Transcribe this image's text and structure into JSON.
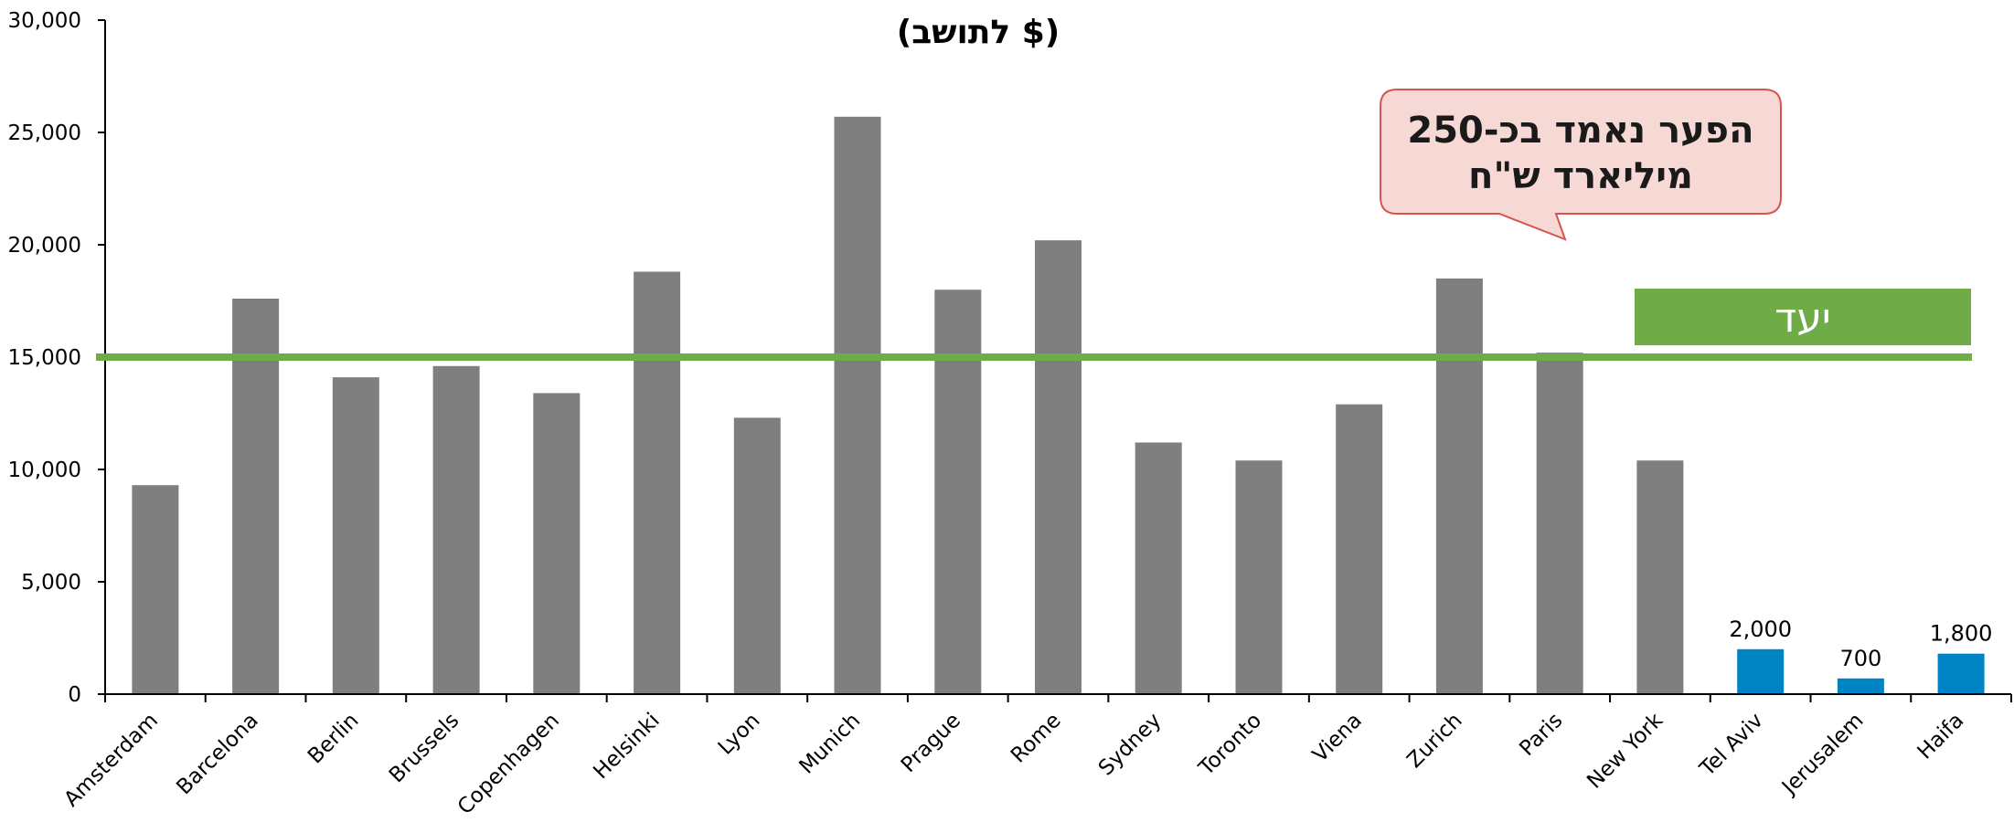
{
  "chart_data": {
    "type": "bar",
    "title": "($ לתושב)",
    "categories": [
      "Amsterdam",
      "Barcelona",
      "Berlin",
      "Brussels",
      "Copenhagen",
      "Helsinki",
      "Lyon",
      "Munich",
      "Prague",
      "Rome",
      "Sydney",
      "Toronto",
      "Viena",
      "Zurich",
      "Paris",
      "New York",
      "Tel Aviv",
      "Jerusalem",
      "Haifa"
    ],
    "values": [
      9300,
      17600,
      14100,
      14600,
      13400,
      18800,
      12300,
      25700,
      18000,
      20200,
      11200,
      10400,
      12900,
      18500,
      15200,
      10400,
      2000,
      700,
      1800
    ],
    "data_labels": [
      "",
      "",
      "",
      "",
      "",
      "",
      "",
      "",
      "",
      "",
      "",
      "",
      "",
      "",
      "",
      "",
      "2,000",
      "700",
      "1,800"
    ],
    "ylim": [
      0,
      30000
    ],
    "yticks": [
      0,
      5000,
      10000,
      15000,
      20000,
      25000,
      30000
    ],
    "ytick_labels": [
      "0",
      "5,000",
      "10,000",
      "15,000",
      "20,000",
      "25,000",
      "30,000"
    ],
    "grid": false,
    "legend": "none",
    "colors": {
      "bar_default": "#7f7f7f",
      "bar_highlight": "#0083c3",
      "target": "#6fab46",
      "callout_fill": "#f6d9d5",
      "callout_border": "#d9534f"
    },
    "highlighted_categories": [
      "Tel Aviv",
      "Jerusalem",
      "Haifa"
    ],
    "target": {
      "value": 15000,
      "label": "יעד"
    },
    "annotation": {
      "lines": [
        "הפער נאמד בכ-250",
        "מיליארד ש\"ח"
      ]
    }
  }
}
